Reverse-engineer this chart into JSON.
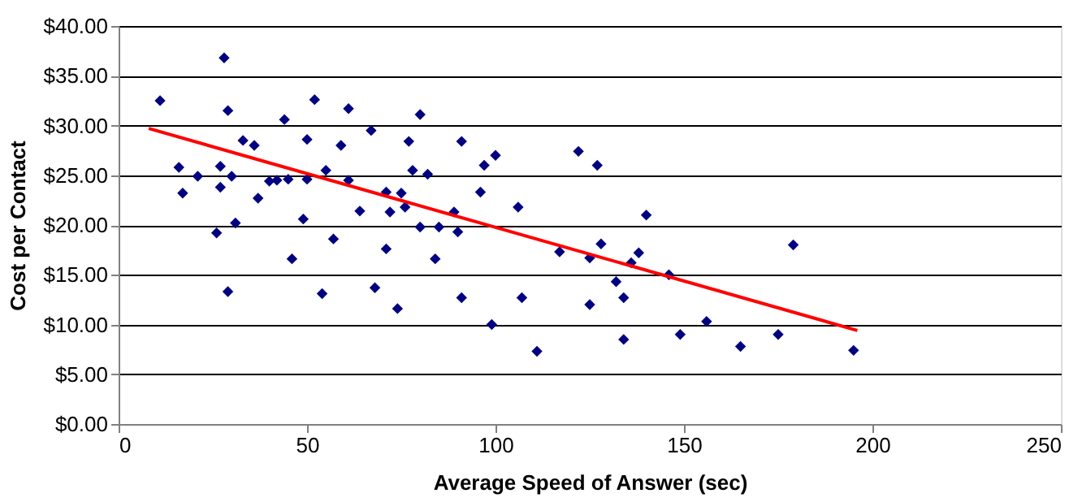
{
  "chart_data": {
    "type": "scatter",
    "xlabel": "Average Speed of Answer (sec)",
    "ylabel": "Cost per Contact",
    "xlim": [
      0,
      250
    ],
    "xticks": [
      0,
      50,
      100,
      150,
      200,
      250
    ],
    "ylim": [
      0,
      40
    ],
    "yticks": [
      {
        "value": 0,
        "label": "$0.00"
      },
      {
        "value": 5,
        "label": "$5.00"
      },
      {
        "value": 10,
        "label": "$10.00"
      },
      {
        "value": 15,
        "label": "$15.00"
      },
      {
        "value": 20,
        "label": "$20.00"
      },
      {
        "value": 25,
        "label": "$25.00"
      },
      {
        "value": 30,
        "label": "$30.00"
      },
      {
        "value": 35,
        "label": "$35.00"
      },
      {
        "value": 40,
        "label": "$40.00"
      }
    ],
    "grid": "y",
    "marker": "diamond",
    "series": [
      {
        "color": "#000080",
        "x": [
          11,
          16,
          17,
          21,
          26,
          27,
          27,
          28,
          29,
          29,
          30,
          31,
          33,
          36,
          37,
          40,
          42,
          44,
          45,
          46,
          49,
          50,
          50,
          52,
          54,
          55,
          57,
          59,
          61,
          61,
          64,
          67,
          68,
          71,
          71,
          72,
          74,
          75,
          76,
          77,
          78,
          80,
          80,
          82,
          84,
          85,
          89,
          90,
          91,
          91,
          96,
          97,
          99,
          100,
          106,
          107,
          111,
          117,
          122,
          125,
          125,
          127,
          128,
          132,
          134,
          134,
          136,
          138,
          140,
          146,
          149,
          156,
          165,
          175,
          179,
          195
        ],
        "values": [
          32.5,
          25.8,
          23.2,
          24.9,
          19.2,
          25.9,
          23.8,
          36.8,
          31.5,
          13.3,
          24.9,
          20.2,
          28.5,
          28.0,
          22.7,
          24.4,
          24.5,
          30.6,
          24.6,
          16.6,
          20.6,
          28.6,
          24.6,
          32.6,
          13.1,
          25.5,
          18.6,
          28.0,
          24.5,
          31.7,
          21.4,
          29.5,
          13.7,
          23.3,
          17.6,
          21.3,
          11.6,
          23.2,
          21.8,
          28.4,
          25.5,
          31.1,
          19.8,
          25.1,
          16.6,
          19.8,
          21.3,
          19.3,
          28.4,
          12.7,
          23.3,
          26.0,
          10.0,
          27.0,
          21.8,
          12.7,
          7.3,
          17.3,
          27.4,
          16.7,
          12.0,
          26.0,
          18.1,
          14.3,
          12.7,
          8.5,
          16.2,
          17.2,
          21.0,
          15.0,
          9.0,
          10.3,
          7.8,
          9.0,
          18.0,
          7.4
        ]
      },
      {
        "type": "line",
        "marker": "none",
        "line_style": "solid",
        "color": "#ff0000",
        "x": [
          8,
          196
        ],
        "values": [
          29.7,
          9.4
        ]
      }
    ]
  }
}
